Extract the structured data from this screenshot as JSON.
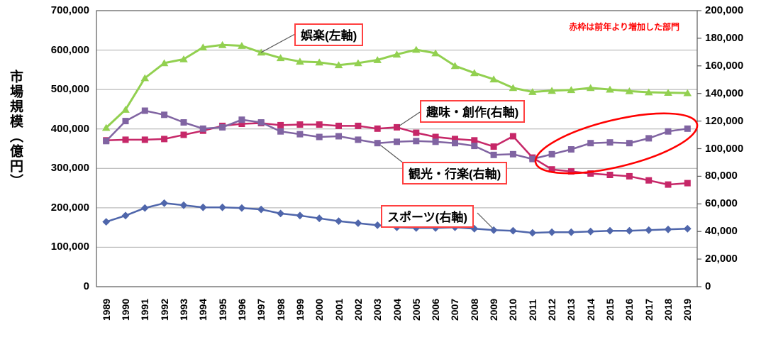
{
  "style": {
    "background": "#FFFFFF",
    "grid_color": "#ABABAB",
    "frame_color": "#595959",
    "leader_color": "#595959",
    "callout_border_color": "#FF4040",
    "ellipse_color": "#FF0000"
  },
  "chart_data": {
    "type": "line",
    "categories": [
      "1989",
      "1990",
      "1991",
      "1992",
      "1993",
      "1994",
      "1995",
      "1996",
      "1997",
      "1998",
      "1999",
      "2000",
      "2001",
      "2002",
      "2003",
      "2004",
      "2005",
      "2006",
      "2007",
      "2008",
      "2009",
      "2010",
      "2011",
      "2012",
      "2013",
      "2014",
      "2015",
      "2016",
      "2017",
      "2018",
      "2019"
    ],
    "series": [
      {
        "name": "娯楽(左軸)",
        "axis": "left",
        "color": "#92D050",
        "marker": "triangle",
        "values": [
          403000,
          449000,
          529000,
          567000,
          577000,
          607000,
          613000,
          611000,
          594000,
          580000,
          571000,
          569000,
          562000,
          567000,
          575000,
          589000,
          601000,
          592000,
          560000,
          542000,
          526000,
          504000,
          494000,
          497000,
          499000,
          504000,
          500000,
          496000,
          493000,
          492000,
          491000
        ]
      },
      {
        "name": "趣味・創作(右軸)",
        "axis": "right",
        "color": "#C62768",
        "marker": "square",
        "values": [
          106000,
          106500,
          106500,
          107000,
          110000,
          113000,
          116500,
          118000,
          118500,
          117000,
          117500,
          117500,
          116500,
          116500,
          114500,
          115500,
          111500,
          108500,
          107000,
          106000,
          101500,
          109000,
          93500,
          85000,
          83500,
          82000,
          81000,
          80000,
          77000,
          74000,
          75000
        ]
      },
      {
        "name": "観光・行楽(右軸)",
        "axis": "right",
        "color": "#8064A2",
        "marker": "square",
        "values": [
          105500,
          120000,
          127500,
          124500,
          119000,
          114500,
          115500,
          121000,
          119000,
          112500,
          110500,
          108500,
          109000,
          106500,
          104000,
          105000,
          105500,
          105000,
          104000,
          102000,
          95500,
          96000,
          92500,
          96000,
          99500,
          104000,
          104500,
          104000,
          107500,
          112500,
          114500
        ]
      },
      {
        "name": "スポーツ(右軸)",
        "axis": "right",
        "color": "#4F66AB",
        "marker": "diamond",
        "values": [
          47000,
          51500,
          57000,
          60500,
          59000,
          57500,
          57500,
          57000,
          56000,
          53000,
          51500,
          49500,
          47500,
          46000,
          44500,
          43000,
          42500,
          42500,
          43000,
          42000,
          41000,
          40500,
          39000,
          39500,
          39500,
          40000,
          40500,
          40500,
          41000,
          41500,
          42000
        ]
      }
    ],
    "y_left": {
      "title": "市場規模（億円）",
      "min": 0,
      "max": 700000,
      "step": 100000,
      "tick_labels": [
        "700,000",
        "600,000",
        "500,000",
        "400,000",
        "300,000",
        "200,000",
        "100,000",
        "0"
      ]
    },
    "y_right": {
      "min": 0,
      "max": 200000,
      "step": 20000,
      "tick_labels": [
        "200,000",
        "180,000",
        "160,000",
        "140,000",
        "120,000",
        "100,000",
        "80,000",
        "60,000",
        "40,000",
        "20,000",
        "0"
      ]
    },
    "grid": true,
    "annotation": {
      "note": "赤枠は前年より増加した部門",
      "note_color": "#FF0000",
      "ellipse_series": "観光・行楽(右軸)",
      "ellipse_years": "2012-2019"
    }
  }
}
